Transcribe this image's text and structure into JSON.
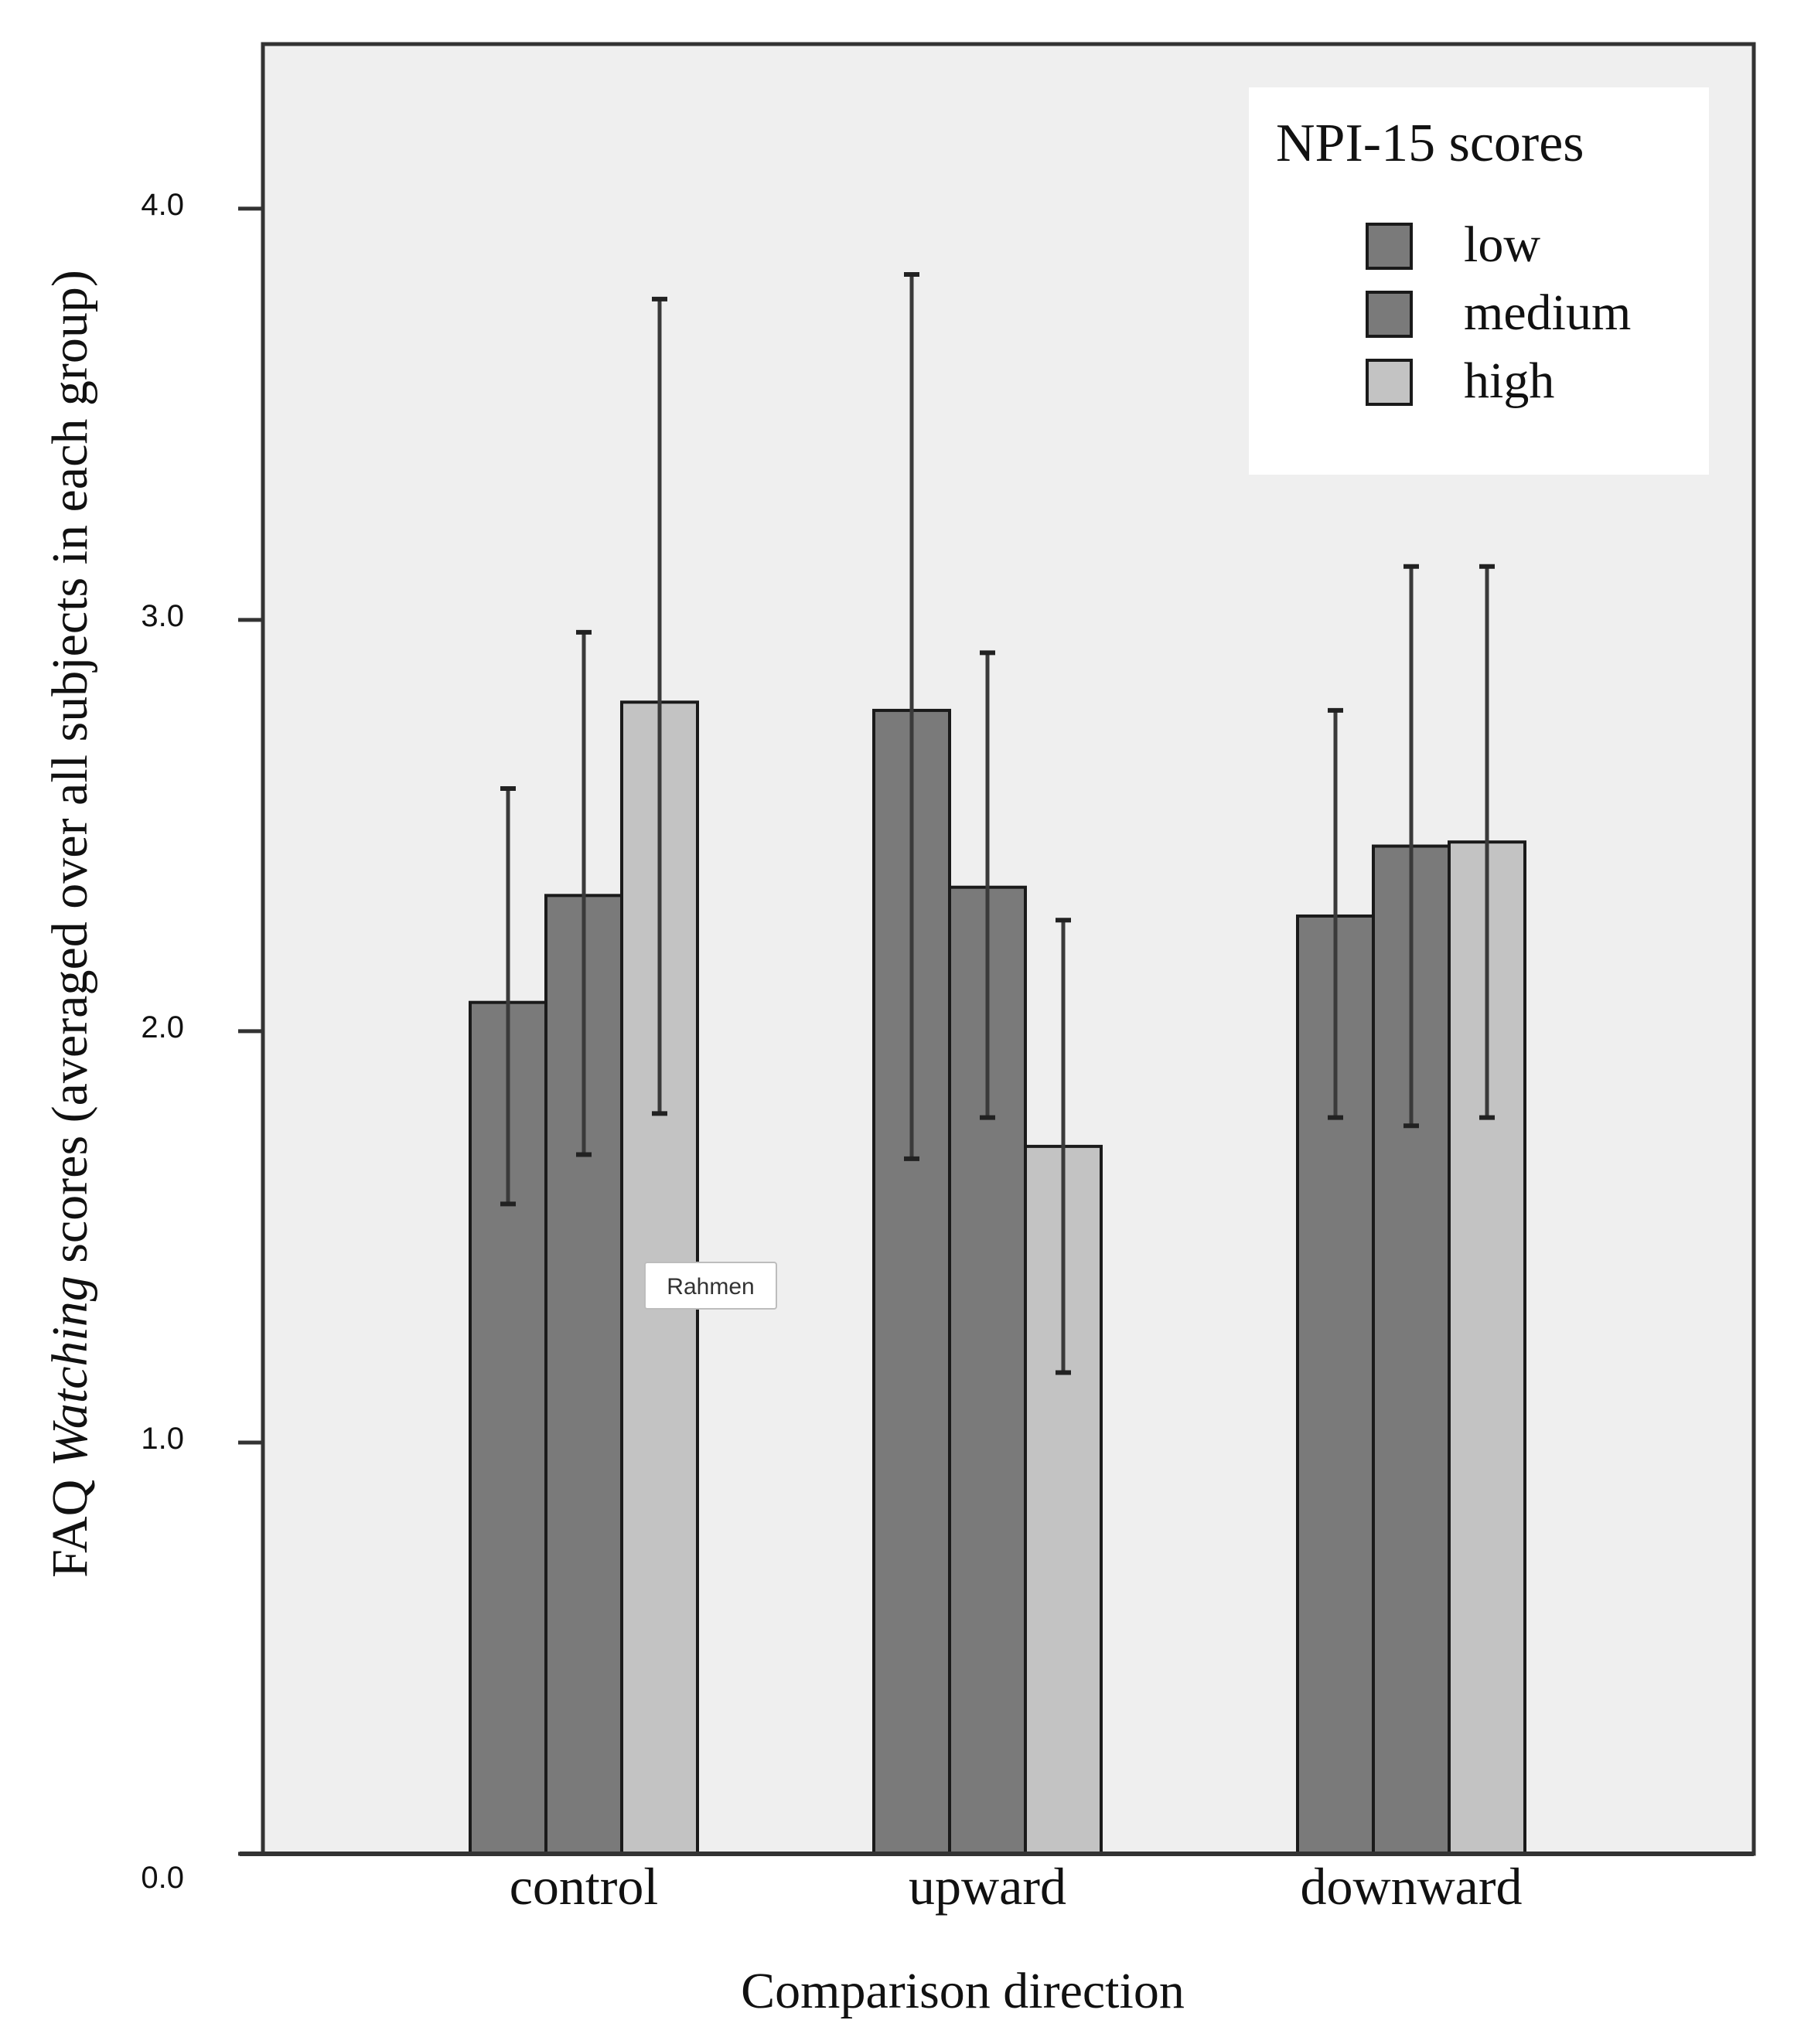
{
  "chart_data": {
    "type": "bar",
    "categories": [
      "control",
      "upward",
      "downward"
    ],
    "series": [
      {
        "name": "low",
        "values": [
          2.07,
          2.78,
          2.28
        ],
        "error_low": [
          1.58,
          1.69,
          1.79
        ],
        "error_high": [
          2.59,
          3.84,
          2.78
        ],
        "color": "#7a7a7a"
      },
      {
        "name": "medium",
        "values": [
          2.33,
          2.35,
          2.45
        ],
        "error_low": [
          1.7,
          1.79,
          1.77
        ],
        "error_high": [
          2.97,
          2.92,
          3.13
        ],
        "color": "#7a7a7a"
      },
      {
        "name": "high",
        "values": [
          2.8,
          1.72,
          2.46
        ],
        "error_low": [
          1.8,
          1.17,
          1.79
        ],
        "error_high": [
          3.78,
          2.27,
          3.13
        ],
        "color": "#c3c3c3"
      }
    ],
    "ylim": [
      0,
      4.4
    ],
    "yticks": [
      0,
      1,
      2,
      3,
      4
    ],
    "ytick_labels": [
      "0.0",
      "1.0",
      "2.0",
      "3.0",
      "4.0"
    ],
    "xlabel": "Comparison direction",
    "ylabel_prefix": "FAQ ",
    "ylabel_italic": "Watching",
    "ylabel_suffix": " scores (averaged over all subjects in each group)",
    "legend": {
      "title": "NPI-15 scores",
      "entries": [
        "low",
        "medium",
        "high"
      ],
      "placement": "top-right"
    },
    "tooltip": "Rahmen",
    "grid": false,
    "plot_background": "#efefef",
    "axis_color": "#333333"
  }
}
